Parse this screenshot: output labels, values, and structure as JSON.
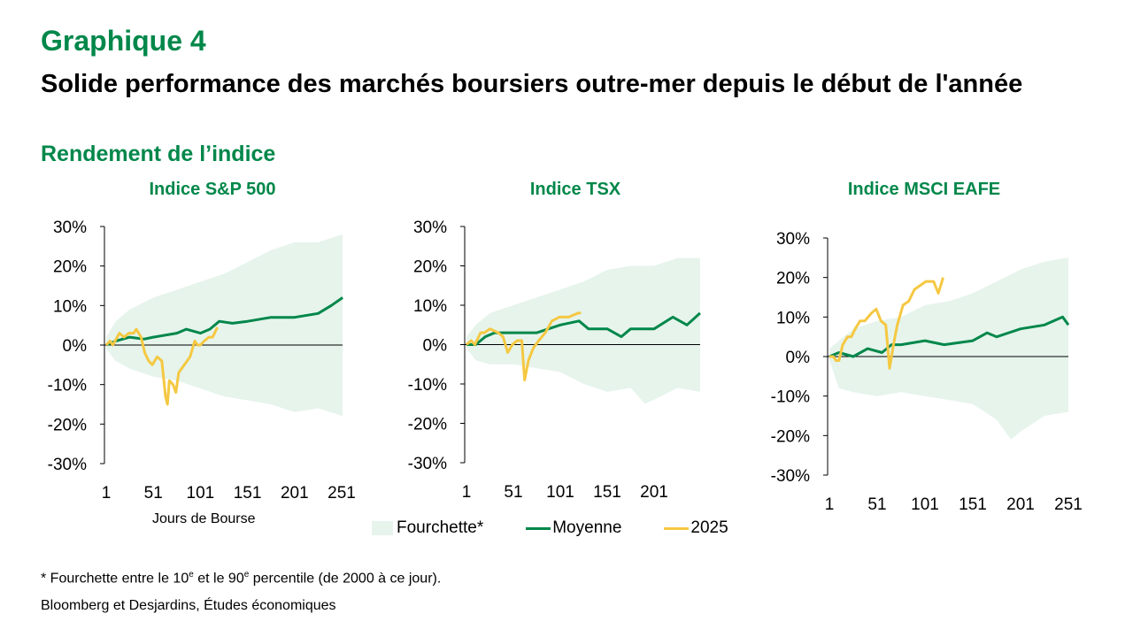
{
  "header": {
    "label": "Graphique 4",
    "title": "Solide performance des marchés boursiers outre-mer depuis le début de l'année",
    "subtitle": "Rendement de l’indice"
  },
  "legend": {
    "band": "Fourchette*",
    "mean": "Moyenne",
    "current": "2025"
  },
  "colors": {
    "band": "#e6f4ec",
    "mean": "#00874a",
    "current": "#f5c842",
    "accent_text": "#00874a",
    "axis": "#000000"
  },
  "footnote": {
    "prefix": "* Fourchette entre le 10",
    "sup1": "e",
    "middle": " et le 90",
    "sup2": "e",
    "suffix": " percentile (de 2000 à ce jour)."
  },
  "source": "Bloomberg et Desjardins, Études économiques",
  "chart_data": [
    {
      "type": "line",
      "title": "Indice S&P 500",
      "xlabel": "Jours de Bourse",
      "ylabel": "",
      "ylim": [
        -30,
        30
      ],
      "xlim": [
        1,
        252
      ],
      "yticks": [
        "30%",
        "20%",
        "10%",
        "0%",
        "-10%",
        "-20%",
        "-30%"
      ],
      "ytick_values": [
        30,
        20,
        10,
        0,
        -10,
        -20,
        -30
      ],
      "xticks": [
        "1",
        "51",
        "101",
        "151",
        "201",
        "251"
      ],
      "xtick_values": [
        1,
        51,
        101,
        151,
        201,
        251
      ],
      "series": [
        {
          "name": "Fourchette* (haut)",
          "kind": "band_upper",
          "x": [
            1,
            11,
            26,
            51,
            76,
            101,
            126,
            151,
            176,
            201,
            226,
            252
          ],
          "y": [
            2,
            6,
            9,
            12,
            14,
            16,
            18,
            21,
            24,
            26,
            26,
            28
          ]
        },
        {
          "name": "Fourchette* (bas)",
          "kind": "band_lower",
          "x": [
            1,
            11,
            26,
            51,
            76,
            101,
            126,
            151,
            176,
            201,
            226,
            252
          ],
          "y": [
            -1,
            -4,
            -6,
            -8,
            -9,
            -11,
            -13,
            -14,
            -15,
            -17,
            -16,
            -18
          ]
        },
        {
          "name": "Moyenne",
          "kind": "mean",
          "x": [
            1,
            11,
            26,
            41,
            51,
            76,
            86,
            101,
            111,
            121,
            135,
            151,
            176,
            201,
            226,
            240,
            252
          ],
          "y": [
            0,
            1,
            2,
            1.5,
            2,
            3,
            4,
            3,
            4,
            6,
            5.5,
            6,
            7,
            7,
            8,
            10,
            12
          ]
        },
        {
          "name": "2025",
          "kind": "current",
          "x": [
            1,
            5,
            8,
            15,
            20,
            25,
            30,
            33,
            38,
            42,
            46,
            50,
            55,
            60,
            64,
            66,
            68,
            72,
            75,
            78,
            84,
            90,
            95,
            98,
            101,
            105,
            110,
            114,
            118,
            119
          ],
          "y": [
            0,
            1,
            0,
            3,
            2,
            3,
            3,
            4,
            2,
            -2,
            -4,
            -5,
            -3,
            -4,
            -13,
            -15,
            -9,
            -10,
            -12,
            -7,
            -5,
            -3,
            1,
            0,
            0,
            1,
            2,
            2,
            4,
            4.5
          ]
        }
      ]
    },
    {
      "type": "line",
      "title": "Indice TSX",
      "xlabel": "",
      "ylabel": "",
      "ylim": [
        -30,
        30
      ],
      "xlim": [
        1,
        252
      ],
      "yticks": [
        "30%",
        "20%",
        "10%",
        "0%",
        "-10%",
        "-20%",
        "-30%"
      ],
      "ytick_values": [
        30,
        20,
        10,
        0,
        -10,
        -20,
        -30
      ],
      "xticks": [
        "1",
        "51",
        "101",
        "151",
        "201"
      ],
      "xtick_values": [
        1,
        51,
        101,
        151,
        201
      ],
      "series": [
        {
          "name": "Fourchette* (haut)",
          "kind": "band_upper",
          "x": [
            1,
            11,
            26,
            51,
            76,
            101,
            126,
            151,
            176,
            201,
            226,
            250
          ],
          "y": [
            2,
            5,
            8,
            10,
            12,
            14,
            16,
            19,
            20,
            20,
            22,
            22
          ]
        },
        {
          "name": "Fourchette* (bas)",
          "kind": "band_lower",
          "x": [
            1,
            11,
            26,
            51,
            76,
            101,
            126,
            151,
            176,
            191,
            201,
            226,
            250
          ],
          "y": [
            -1,
            -4,
            -5,
            -5,
            -6,
            -7,
            -10,
            -12,
            -11,
            -15,
            -14,
            -11,
            -12
          ]
        },
        {
          "name": "Moyenne",
          "kind": "mean",
          "x": [
            1,
            11,
            21,
            31,
            51,
            76,
            101,
            121,
            131,
            151,
            166,
            176,
            201,
            221,
            236,
            250
          ],
          "y": [
            0,
            0,
            2,
            3,
            3,
            3,
            5,
            6,
            4,
            4,
            2,
            4,
            4,
            7,
            5,
            8
          ]
        },
        {
          "name": "2025",
          "kind": "current",
          "x": [
            1,
            6,
            10,
            16,
            20,
            26,
            35,
            40,
            45,
            50,
            55,
            60,
            63,
            67,
            72,
            78,
            85,
            92,
            100,
            110,
            120,
            123
          ],
          "y": [
            0,
            1,
            0,
            3,
            3,
            4,
            3,
            2,
            -2,
            0,
            1,
            1,
            -9,
            -4,
            -1,
            1,
            3,
            6,
            7,
            7,
            8,
            8
          ]
        }
      ]
    },
    {
      "type": "line",
      "title": "Indice MSCI EAFE",
      "xlabel": "",
      "ylabel": "",
      "ylim": [
        -30,
        30
      ],
      "xlim": [
        1,
        252
      ],
      "yticks": [
        "30%",
        "20%",
        "10%",
        "0%",
        "-10%",
        "-20%",
        "-30%"
      ],
      "ytick_values": [
        30,
        20,
        10,
        0,
        -10,
        -20,
        -30
      ],
      "xticks": [
        "1",
        "51",
        "101",
        "151",
        "201",
        "251"
      ],
      "xtick_values": [
        1,
        51,
        101,
        151,
        201,
        251
      ],
      "series": [
        {
          "name": "Fourchette* (haut)",
          "kind": "band_upper",
          "x": [
            1,
            11,
            26,
            51,
            76,
            101,
            126,
            151,
            176,
            201,
            226,
            251
          ],
          "y": [
            2,
            4,
            7,
            9,
            10,
            13,
            14,
            16,
            19,
            22,
            24,
            25
          ]
        },
        {
          "name": "Fourchette* (bas)",
          "kind": "band_lower",
          "x": [
            1,
            11,
            26,
            51,
            76,
            101,
            126,
            151,
            176,
            191,
            201,
            226,
            251
          ],
          "y": [
            -1,
            -8,
            -9,
            -10,
            -9,
            -10,
            -11,
            -12,
            -16,
            -21,
            -19,
            -15,
            -14
          ]
        },
        {
          "name": "Moyenne",
          "kind": "mean",
          "x": [
            1,
            11,
            26,
            41,
            56,
            66,
            76,
            101,
            121,
            151,
            166,
            176,
            201,
            226,
            245,
            251
          ],
          "y": [
            0,
            1,
            0,
            2,
            1,
            3,
            3,
            4,
            3,
            4,
            6,
            5,
            7,
            8,
            10,
            8
          ]
        },
        {
          "name": "2025",
          "kind": "current",
          "x": [
            1,
            5,
            8,
            11,
            15,
            20,
            24,
            28,
            33,
            38,
            45,
            50,
            55,
            60,
            64,
            68,
            72,
            78,
            84,
            90,
            96,
            102,
            110,
            115,
            120
          ],
          "y": [
            0,
            0,
            -1,
            -1,
            3,
            5,
            5,
            7,
            9,
            9,
            11,
            12,
            9,
            8,
            -3,
            3,
            8,
            13,
            14,
            17,
            18,
            19,
            19,
            16,
            20
          ]
        }
      ]
    }
  ]
}
